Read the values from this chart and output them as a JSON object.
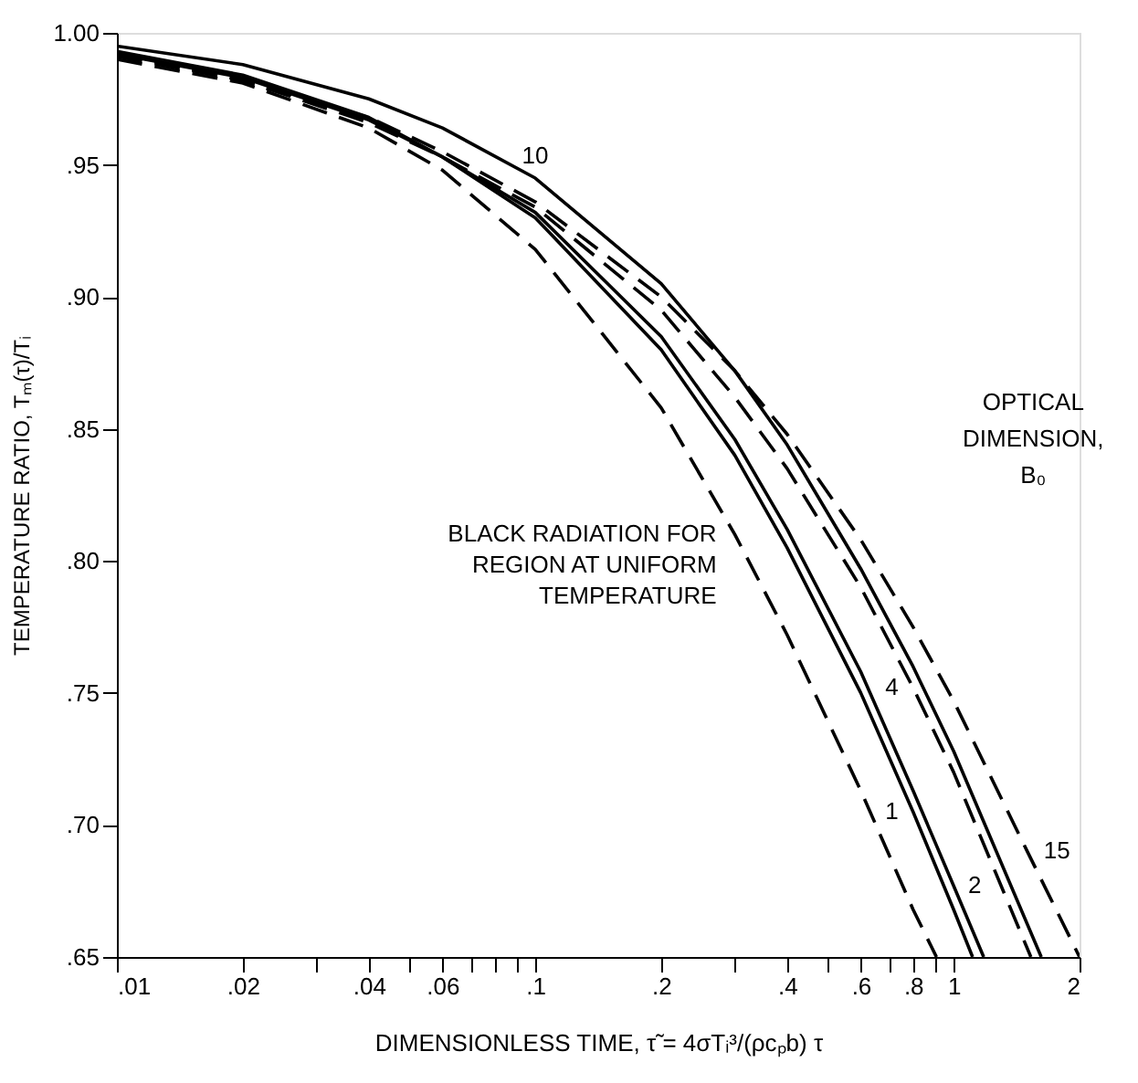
{
  "chart_data": {
    "type": "line",
    "xlabel": "DIMENSIONLESS TIME, τ̃ = 4σTᵢ³/(ρcₚb) τ",
    "ylabel": "TEMPERATURE RATIO, Tₘ(τ)/Tᵢ",
    "legend_title": "OPTICAL DIMENSION, B₀",
    "log": "x",
    "grid": false,
    "legend": "right",
    "marker": "none",
    "xlim": [
      0.01,
      2
    ],
    "ylim": [
      0.65,
      1.0
    ],
    "xticks": [
      {
        "value": 0.01,
        "label": ".01"
      },
      {
        "value": 0.02,
        "label": ".02"
      },
      {
        "value": 0.03,
        "label": null
      },
      {
        "value": 0.04,
        "label": ".04"
      },
      {
        "value": 0.05,
        "label": null
      },
      {
        "value": 0.06,
        "label": ".06"
      },
      {
        "value": 0.07,
        "label": null
      },
      {
        "value": 0.08,
        "label": null
      },
      {
        "value": 0.09,
        "label": null
      },
      {
        "value": 0.1,
        "label": ".1"
      },
      {
        "value": 0.2,
        "label": ".2"
      },
      {
        "value": 0.3,
        "label": null
      },
      {
        "value": 0.4,
        "label": ".4"
      },
      {
        "value": 0.5,
        "label": null
      },
      {
        "value": 0.6,
        "label": ".6"
      },
      {
        "value": 0.7,
        "label": null
      },
      {
        "value": 0.8,
        "label": ".8"
      },
      {
        "value": 0.9,
        "label": null
      },
      {
        "value": 1,
        "label": "1"
      },
      {
        "value": 2,
        "label": "2"
      }
    ],
    "yticks": [
      {
        "value": 0.65,
        "label": ".65"
      },
      {
        "value": 0.7,
        "label": ".70"
      },
      {
        "value": 0.75,
        "label": ".75"
      },
      {
        "value": 0.8,
        "label": ".80"
      },
      {
        "value": 0.85,
        "label": ".85"
      },
      {
        "value": 0.9,
        "label": ".90"
      },
      {
        "value": 0.95,
        "label": ".95"
      },
      {
        "value": 1.0,
        "label": "1.00"
      }
    ],
    "series": [
      {
        "name": "BLACK RADIATION FOR REGION AT UNIFORM TEMPERATURE",
        "color": "#000000",
        "line_style": "dashed",
        "x": [
          0.01,
          0.02,
          0.04,
          0.06,
          0.1,
          0.2,
          0.3,
          0.4,
          0.6,
          0.8,
          0.91
        ],
        "values": [
          0.99,
          0.981,
          0.964,
          0.948,
          0.918,
          0.858,
          0.81,
          0.772,
          0.713,
          0.668,
          0.65
        ]
      },
      {
        "name": "1",
        "color": "#000000",
        "line_style": "solid",
        "x": [
          0.01,
          0.02,
          0.04,
          0.06,
          0.1,
          0.2,
          0.3,
          0.4,
          0.6,
          0.8,
          1,
          1.11
        ],
        "values": [
          0.993,
          0.984,
          0.968,
          0.953,
          0.93,
          0.88,
          0.84,
          0.805,
          0.75,
          0.705,
          0.668,
          0.65
        ]
      },
      {
        "name": "2",
        "color": "#000000",
        "line_style": "solid",
        "x": [
          0.01,
          0.02,
          0.04,
          0.06,
          0.1,
          0.2,
          0.3,
          0.4,
          0.6,
          0.8,
          1,
          1.18
        ],
        "values": [
          0.992,
          0.983,
          0.967,
          0.953,
          0.932,
          0.885,
          0.846,
          0.812,
          0.758,
          0.713,
          0.677,
          0.65
        ]
      },
      {
        "name": "4",
        "color": "#000000",
        "line_style": "dashed",
        "x": [
          0.01,
          0.02,
          0.04,
          0.06,
          0.1,
          0.2,
          0.3,
          0.4,
          0.6,
          0.8,
          1,
          1.53
        ],
        "values": [
          0.992,
          0.982,
          0.966,
          0.953,
          0.934,
          0.895,
          0.862,
          0.835,
          0.79,
          0.752,
          0.72,
          0.65
        ]
      },
      {
        "name": "10",
        "color": "#000000",
        "line_style": "solid",
        "x": [
          0.01,
          0.02,
          0.04,
          0.06,
          0.1,
          0.2,
          0.3,
          0.4,
          0.6,
          0.8,
          1,
          1.62
        ],
        "values": [
          0.995,
          0.988,
          0.975,
          0.964,
          0.945,
          0.905,
          0.872,
          0.844,
          0.797,
          0.76,
          0.728,
          0.65
        ]
      },
      {
        "name": "15",
        "color": "#000000",
        "line_style": "dashed",
        "x": [
          0.01,
          0.02,
          0.04,
          0.06,
          0.1,
          0.2,
          0.3,
          0.4,
          0.6,
          0.8,
          1,
          1.5,
          2
        ],
        "values": [
          0.991,
          0.982,
          0.968,
          0.955,
          0.936,
          0.9,
          0.872,
          0.848,
          0.808,
          0.775,
          0.747,
          0.69,
          0.65
        ]
      }
    ]
  }
}
